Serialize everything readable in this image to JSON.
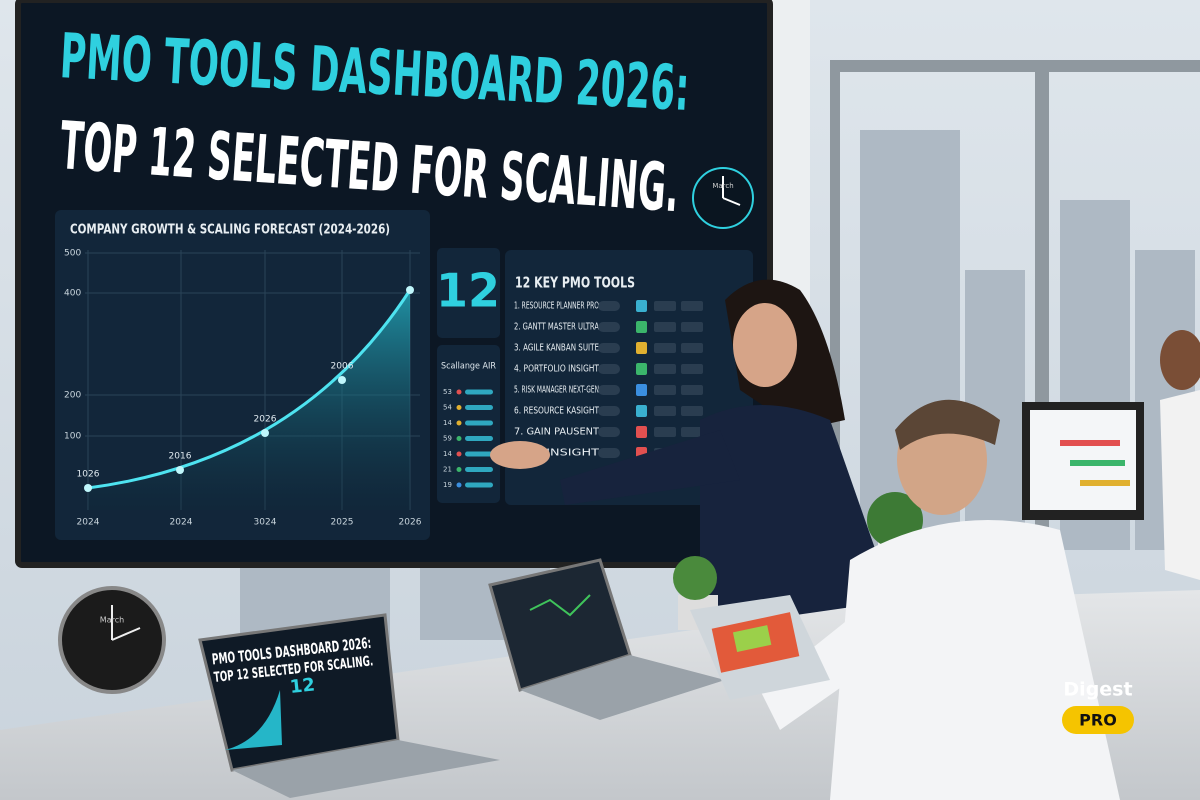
{
  "screen": {
    "title": "PMO TOOLS DASHBOARD 2026:",
    "subtitle": "TOP 12 SELECTED FOR SCALING.",
    "clock_label": "March",
    "growth_chart": {
      "title": "COMPANY GROWTH & SCALING FORECAST (2024-2026)",
      "y_labels": [
        "500",
        "400",
        "200",
        "100"
      ],
      "x_labels": [
        "2024",
        "2024",
        "3024",
        "2025",
        "2026"
      ],
      "point_labels": [
        "1026",
        "2016",
        "2026",
        "2006"
      ]
    },
    "count": "12",
    "side_panel": {
      "title": "Scallange AIR",
      "rows": [
        "53",
        "54",
        "14",
        "59",
        "14",
        "21",
        "19"
      ]
    },
    "tool_list": {
      "title": "12 KEY PMO TOOLS",
      "items": [
        "1. RESOURCE PLANNER PRO",
        "2. GANTT MASTER ULTRA",
        "3. AGILE KANBAN SUITE",
        "4. PORTFOLIO INSIGHT",
        "5. RISK MANAGER NEXT-GEN",
        "6. RESOURCE KASIGHT",
        "7. GAIN PAUSENT",
        "...BY INSIGHT"
      ]
    }
  },
  "badge": {
    "brand": "Digest",
    "tier": "PRO"
  }
}
